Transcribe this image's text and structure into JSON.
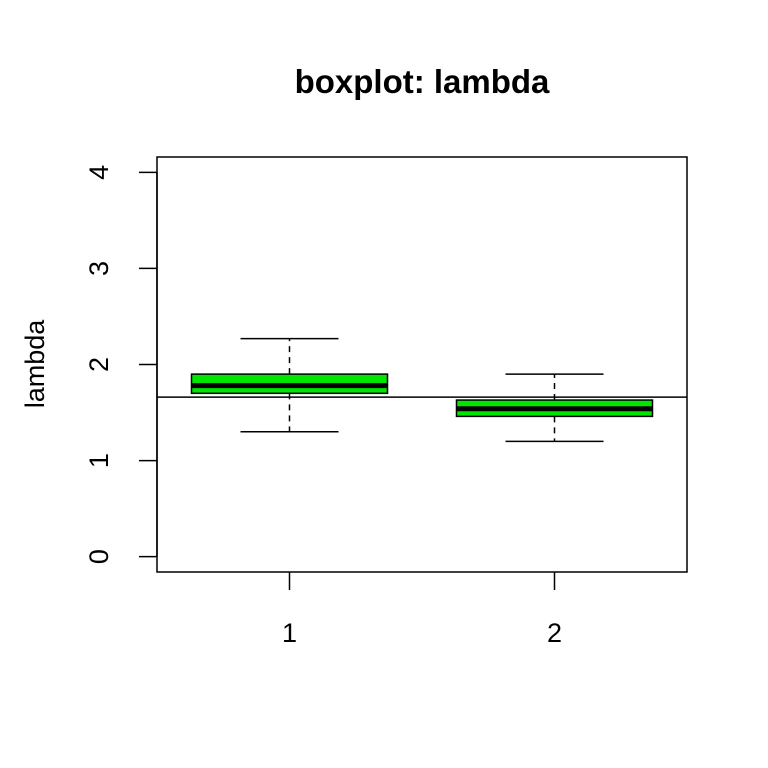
{
  "chart_data": {
    "type": "boxplot",
    "title": "boxplot: lambda",
    "xlabel": "",
    "ylabel": "lambda",
    "categories": [
      "1",
      "2"
    ],
    "boxes": [
      {
        "category": "1",
        "whisker_low": 1.3,
        "q1": 1.7,
        "median": 1.78,
        "q3": 1.9,
        "whisker_high": 2.27
      },
      {
        "category": "2",
        "whisker_low": 1.2,
        "q1": 1.46,
        "median": 1.54,
        "q3": 1.63,
        "whisker_high": 1.9
      }
    ],
    "reference_line": 1.66,
    "ylim": [
      -0.16,
      4.16
    ],
    "y_ticks": [
      0,
      1,
      2,
      3,
      4
    ],
    "y_tick_labels": [
      "0",
      "1",
      "2",
      "3",
      "4"
    ],
    "box_fill": "#00e600",
    "grid": false,
    "legend": "none"
  }
}
